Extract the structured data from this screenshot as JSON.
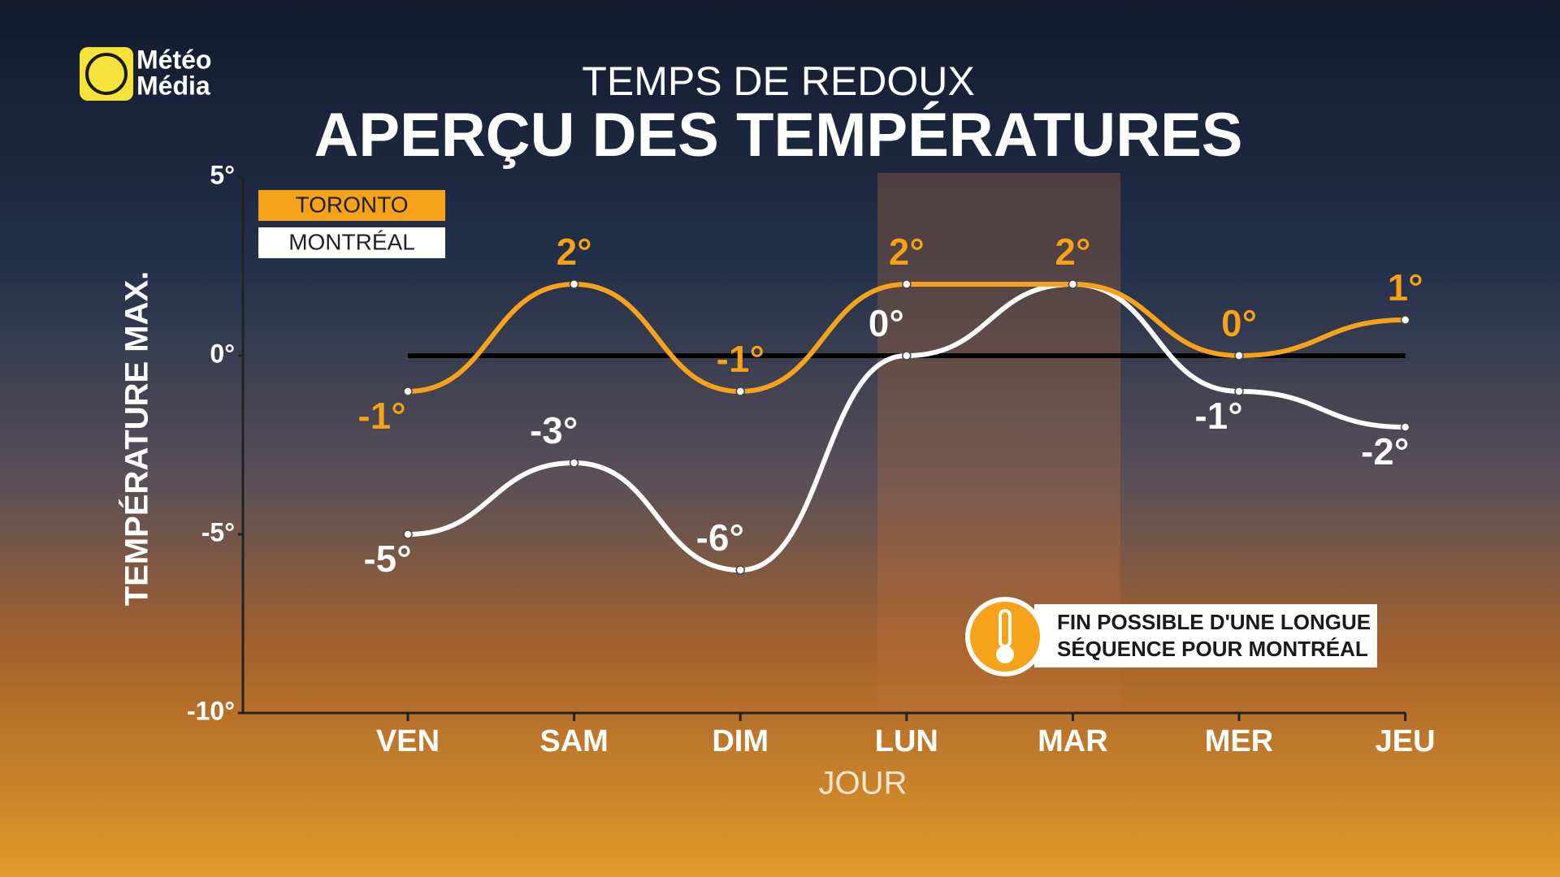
{
  "brand": [
    "Météo",
    "Média"
  ],
  "chart_data": {
    "type": "line",
    "subtitle": "TEMPS DE REDOUX",
    "title": "APERÇU DES TEMPÉRATURES",
    "y_label": "TEMPÉRATURE MAX.",
    "x_label": "JOUR",
    "categories": [
      "VEN",
      "SAM",
      "DIM",
      "LUN",
      "MAR",
      "MER",
      "JEU"
    ],
    "series": [
      {
        "name": "TORONTO",
        "color": "#f7a21b",
        "values": [
          -1,
          2,
          -1,
          2,
          2,
          0,
          1
        ],
        "value_labels": [
          "-1°",
          "2°",
          "-1°",
          "2°",
          "2°",
          "0°",
          "1°"
        ]
      },
      {
        "name": "MONTRÉAL",
        "color": "#ffffff",
        "values": [
          -5,
          -3,
          -6,
          0,
          2,
          -1,
          -2
        ],
        "value_labels": [
          "-5°",
          "-3°",
          "-6°",
          "0°",
          null,
          "-1°",
          "-2°"
        ]
      }
    ],
    "ylim": [
      -10,
      5
    ],
    "yticks": [
      {
        "value": 5,
        "label": "5°"
      },
      {
        "value": 0,
        "label": "0°"
      },
      {
        "value": -5,
        "label": "-5°"
      },
      {
        "value": -10,
        "label": "-10°"
      }
    ],
    "annotation": [
      "FIN POSSIBLE D'UNE LONGUE",
      "SÉQUENCE POUR MONTRÉAL"
    ]
  }
}
